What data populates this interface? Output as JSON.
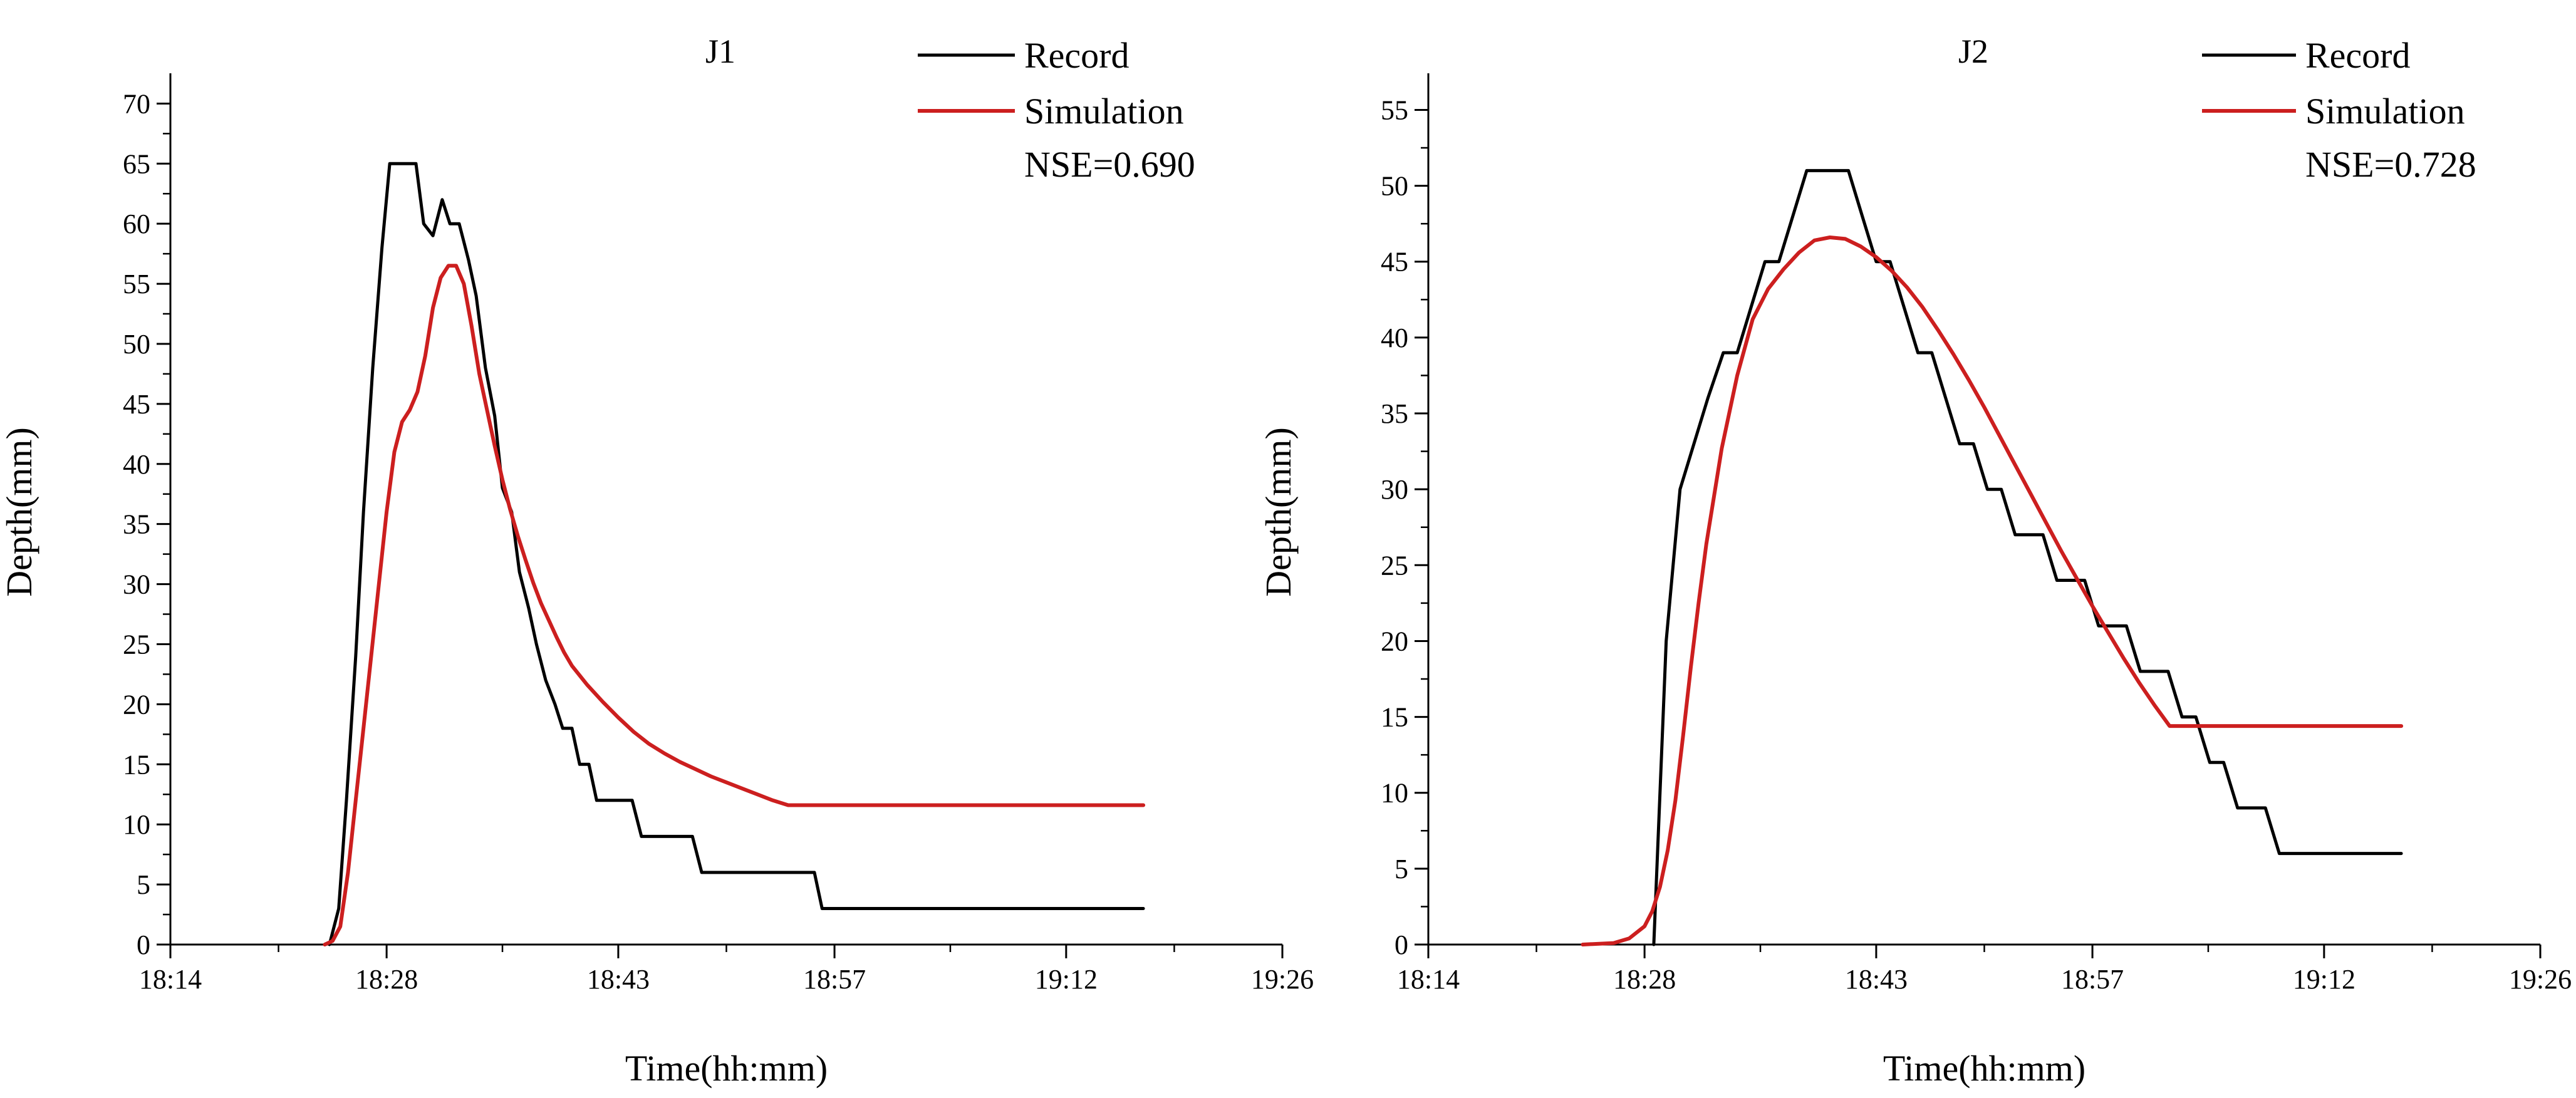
{
  "colors": {
    "record": "#000000",
    "simulation": "#cc1f1f",
    "axis": "#000000"
  },
  "chart_data": [
    {
      "type": "line",
      "title": "J1",
      "xlabel": "Time(hh:mm)",
      "ylabel": "Depth(mm)",
      "x_unit": "minutes since 00:00",
      "xlim": [
        1094,
        1166
      ],
      "ylim": [
        0,
        72
      ],
      "xticks": [
        1094,
        1108,
        1123,
        1137,
        1152,
        1166
      ],
      "xtick_labels": [
        "18:14",
        "18:28",
        "18:43",
        "18:57",
        "19:12",
        "19:26"
      ],
      "yticks": [
        0,
        5,
        10,
        15,
        20,
        25,
        30,
        35,
        40,
        45,
        50,
        55,
        60,
        65,
        70
      ],
      "ytick_labels": [
        "0",
        "5",
        "10",
        "15",
        "20",
        "25",
        "30",
        "35",
        "40",
        "45",
        "50",
        "55",
        "60",
        "65",
        "70"
      ],
      "grid": false,
      "legend_position": "top-right",
      "annotation": "NSE=0.690",
      "series": [
        {
          "name": "Record",
          "color": "#000000",
          "x": [
            1104.3,
            1104.9,
            1105.4,
            1106.0,
            1106.5,
            1107.1,
            1107.7,
            1108.2,
            1108.8,
            1109.3,
            1109.9,
            1110.4,
            1111.0,
            1111.6,
            1112.1,
            1112.7,
            1113.3,
            1113.8,
            1114.4,
            1115.0,
            1115.5,
            1116.1,
            1116.6,
            1117.2,
            1117.7,
            1118.3,
            1118.9,
            1119.4,
            1120.0,
            1120.5,
            1121.1,
            1121.6,
            1122.2,
            1122.7,
            1123.3,
            1123.9,
            1124.5,
            1125.0,
            1125.6,
            1126.1,
            1126.7,
            1127.3,
            1127.8,
            1128.4,
            1129.0,
            1129.5,
            1130.1,
            1130.7,
            1131.2,
            1131.7,
            1132.3,
            1132.8,
            1133.4,
            1134.0,
            1134.5,
            1135.1,
            1135.7,
            1136.2,
            1136.8,
            1137.3,
            1137.9,
            1138.5,
            1139.0,
            1139.6,
            1140.2,
            1140.7,
            1141.3,
            1141.8,
            1142.4,
            1143.0,
            1143.5,
            1144.1,
            1144.7,
            1145.2,
            1145.7,
            1146.3,
            1146.9,
            1147.4,
            1148.0,
            1148.6,
            1149.1,
            1149.7,
            1150.2,
            1150.8,
            1151.3,
            1151.9,
            1152.5,
            1153.0,
            1153.6,
            1154.1,
            1154.7,
            1155.3,
            1155.8,
            1156.4,
            1157.0
          ],
          "y": [
            0,
            3,
            12,
            24,
            36,
            48,
            58,
            65,
            65,
            65,
            65,
            60,
            59,
            62,
            60,
            60,
            57,
            54,
            48,
            44,
            38,
            36,
            31,
            28,
            25,
            22,
            20,
            18,
            18,
            15,
            15,
            12,
            12,
            12,
            12,
            12,
            9,
            9,
            9,
            9,
            9,
            9,
            9,
            6,
            6,
            6,
            6,
            6,
            6,
            6,
            6,
            6,
            6,
            6,
            6,
            6,
            6,
            3,
            3,
            3,
            3,
            3,
            3,
            3,
            3,
            3,
            3,
            3,
            3,
            3,
            3,
            3,
            3,
            3,
            3,
            3,
            3,
            3,
            3,
            3,
            3,
            3,
            3,
            3,
            3,
            3,
            3,
            3,
            3,
            3,
            3,
            3,
            3,
            3,
            3
          ]
        },
        {
          "name": "Simulation",
          "color": "#cc1f1f",
          "x": [
            1104.0,
            1104.5,
            1105.0,
            1105.5,
            1106.0,
            1106.5,
            1107.0,
            1107.5,
            1108.0,
            1108.5,
            1109.0,
            1109.5,
            1110.0,
            1110.5,
            1111.0,
            1111.5,
            1112.0,
            1112.5,
            1113.0,
            1113.5,
            1114.0,
            1114.5,
            1115.0,
            1115.5,
            1116.0,
            1116.5,
            1117.0,
            1117.5,
            1118.0,
            1118.5,
            1119.0,
            1119.5,
            1120.0,
            1121.0,
            1122.0,
            1123.0,
            1124.0,
            1125.0,
            1126.0,
            1127.0,
            1128.0,
            1129.0,
            1130.0,
            1131.0,
            1132.0,
            1133.0,
            1134.0,
            1135.0,
            1136.0,
            1137.0,
            1138.0,
            1139.0,
            1140.0,
            1141.0,
            1142.0,
            1143.0,
            1144.0,
            1145.0,
            1146.0,
            1147.0,
            1148.0,
            1149.0,
            1150.0,
            1151.0,
            1152.0,
            1153.0,
            1154.0,
            1155.0,
            1156.0,
            1157.0
          ],
          "y": [
            0,
            0.3,
            1.5,
            6,
            12,
            18,
            24,
            30,
            36,
            41,
            43.5,
            44.5,
            46,
            49,
            53,
            55.5,
            56.5,
            56.5,
            55,
            51.5,
            47.5,
            44.5,
            41.5,
            38.7,
            36.2,
            34,
            32,
            30.1,
            28.4,
            27,
            25.6,
            24.3,
            23.2,
            21.6,
            20.2,
            18.9,
            17.7,
            16.7,
            15.9,
            15.2,
            14.6,
            14.0,
            13.5,
            13.0,
            12.5,
            12.0,
            11.6,
            11.6,
            11.6,
            11.6,
            11.6,
            11.6,
            11.6,
            11.6,
            11.6,
            11.6,
            11.6,
            11.6,
            11.6,
            11.6,
            11.6,
            11.6,
            11.6,
            11.6,
            11.6,
            11.6,
            11.6,
            11.6,
            11.6,
            11.6
          ]
        }
      ]
    },
    {
      "type": "line",
      "title": "J2",
      "xlabel": "Time(hh:mm)",
      "ylabel": "Depth(mm)",
      "x_unit": "minutes since 00:00",
      "xlim": [
        1094,
        1166
      ],
      "ylim": [
        0,
        57
      ],
      "xticks": [
        1094,
        1108,
        1123,
        1137,
        1152,
        1166
      ],
      "xtick_labels": [
        "18:14",
        "18:28",
        "18:43",
        "18:57",
        "19:12",
        "19:26"
      ],
      "yticks": [
        0,
        5,
        10,
        15,
        20,
        25,
        30,
        35,
        40,
        45,
        50,
        55
      ],
      "ytick_labels": [
        "0",
        "5",
        "10",
        "15",
        "20",
        "25",
        "30",
        "35",
        "40",
        "45",
        "50",
        "55"
      ],
      "grid": false,
      "legend_position": "top-right",
      "annotation": "NSE=0.728",
      "series": [
        {
          "name": "Record",
          "color": "#000000",
          "x": [
            1108.6,
            1109.4,
            1110.3,
            1111.2,
            1112.1,
            1113.1,
            1114.0,
            1114.9,
            1115.8,
            1116.7,
            1117.6,
            1118.5,
            1119.4,
            1120.3,
            1121.2,
            1122.1,
            1123.0,
            1123.9,
            1124.8,
            1125.7,
            1126.6,
            1127.5,
            1128.4,
            1129.3,
            1130.2,
            1131.1,
            1132.0,
            1132.9,
            1133.8,
            1134.7,
            1135.6,
            1136.5,
            1137.4,
            1138.3,
            1139.2,
            1140.1,
            1141.0,
            1141.9,
            1142.8,
            1143.7,
            1144.6,
            1145.5,
            1146.4,
            1147.3,
            1148.2,
            1149.1,
            1150.0,
            1150.9,
            1151.8,
            1152.7,
            1153.6,
            1154.5,
            1155.4,
            1156.3,
            1157.0
          ],
          "y": [
            0,
            20,
            30,
            33,
            36,
            39,
            39,
            42,
            45,
            45,
            48,
            51,
            51,
            51,
            51,
            48,
            45,
            45,
            42,
            39,
            39,
            36,
            33,
            33,
            30,
            30,
            27,
            27,
            27,
            24,
            24,
            24,
            21,
            21,
            21,
            18,
            18,
            18,
            15,
            15,
            12,
            12,
            9,
            9,
            9,
            6,
            6,
            6,
            6,
            6,
            6,
            6,
            6,
            6,
            6
          ]
        },
        {
          "name": "Simulation",
          "color": "#cc1f1f",
          "x": [
            1104.0,
            1106.0,
            1107.0,
            1108.0,
            1108.5,
            1109.0,
            1109.5,
            1110.0,
            1110.5,
            1111.0,
            1111.5,
            1112.0,
            1113.0,
            1114.0,
            1115.0,
            1116.0,
            1117.0,
            1118.0,
            1119.0,
            1120.0,
            1121.0,
            1122.0,
            1123.0,
            1124.0,
            1125.0,
            1126.0,
            1127.0,
            1128.0,
            1129.0,
            1130.0,
            1131.0,
            1132.0,
            1133.0,
            1134.0,
            1135.0,
            1136.0,
            1137.0,
            1138.0,
            1139.0,
            1140.0,
            1141.0,
            1142.0,
            1143.0,
            1144.0,
            1145.0,
            1146.0,
            1147.0,
            1148.0,
            1149.0,
            1150.0,
            1151.0,
            1152.0,
            1153.0,
            1154.0,
            1155.0,
            1156.0,
            1157.0
          ],
          "y": [
            0,
            0.1,
            0.4,
            1.2,
            2.2,
            3.8,
            6.2,
            9.5,
            13.8,
            18.3,
            22.5,
            26.4,
            32.7,
            37.5,
            41.2,
            43.2,
            44.5,
            45.6,
            46.4,
            46.6,
            46.5,
            46.0,
            45.3,
            44.4,
            43.3,
            42.0,
            40.5,
            38.9,
            37.2,
            35.4,
            33.5,
            31.6,
            29.7,
            27.8,
            25.9,
            24.1,
            22.3,
            20.6,
            18.9,
            17.3,
            15.8,
            14.4,
            14.4,
            14.4,
            14.4,
            14.4,
            14.4,
            14.4,
            14.4,
            14.4,
            14.4,
            14.4,
            14.4,
            14.4,
            14.4,
            14.4,
            14.4
          ]
        }
      ]
    }
  ]
}
